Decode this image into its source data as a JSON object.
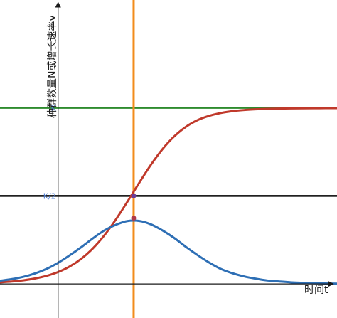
{
  "chart_data": {
    "type": "line",
    "xlabel": "时间t",
    "ylabel": "种群数量N或增长速率v",
    "xlim": [
      -10,
      48
    ],
    "ylim": [
      -6,
      50
    ],
    "grid": false,
    "x": [
      -10,
      -8,
      -6,
      -4,
      -2,
      0,
      2,
      4,
      6,
      8,
      10,
      12,
      14,
      16,
      18,
      20,
      22,
      24,
      26,
      28,
      30,
      32,
      34,
      36,
      38,
      40,
      42,
      44,
      46,
      48
    ],
    "series": [
      {
        "color": "#c0392b",
        "values": [
          0.28,
          0.42,
          0.63,
          0.95,
          1.41,
          2.09,
          3.07,
          4.44,
          6.27,
          8.61,
          11.44,
          14.6,
          17.88,
          21.02,
          23.78,
          26.0,
          27.67,
          28.84,
          29.6,
          30.1,
          30.42,
          30.62,
          30.75,
          30.83,
          30.88,
          30.91,
          30.93,
          30.94,
          30.95,
          30.96
        ]
      },
      {
        "color": "#2e6fb5",
        "values": [
          0.14,
          0.21,
          0.31,
          0.46,
          0.66,
          0.93,
          1.26,
          1.62,
          2.01,
          2.36,
          2.61,
          2.77,
          2.77,
          2.62,
          2.35,
          2.02,
          1.63,
          1.27,
          0.94,
          0.66,
          0.47,
          0.33,
          0.23,
          0.15,
          0.11,
          0.07,
          0.05,
          0.03,
          0.02,
          0.01
        ]
      }
    ],
    "series_scale": [
      1,
      4
    ],
    "reference_lines": [
      {
        "orientation": "horizontal",
        "value": 31,
        "label": "K",
        "color": "#2e8b2e"
      },
      {
        "orientation": "horizontal",
        "value": 15.5,
        "label": "K/2",
        "color": "#000000"
      },
      {
        "orientation": "vertical",
        "value": 13,
        "label": "",
        "color": "#f28c1c"
      }
    ],
    "points": [
      {
        "x": 13,
        "y": 15.5,
        "color": "#6a3d9a"
      },
      {
        "x": 13,
        "y": 11.6,
        "color": "#b03a48"
      }
    ]
  }
}
